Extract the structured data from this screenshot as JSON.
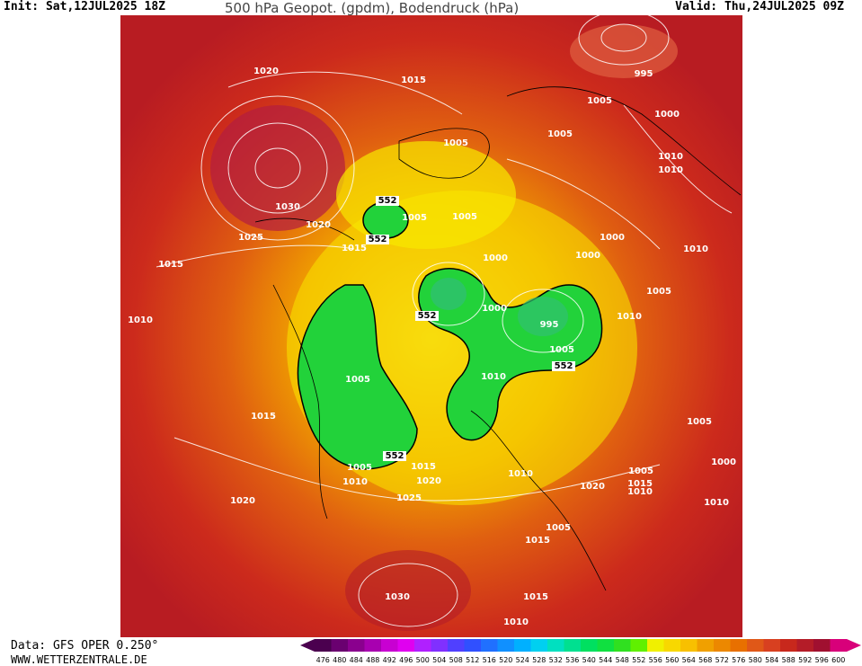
{
  "header": {
    "init": "Init: Sat,12JUL2025 18Z",
    "title": "500 hPa Geopot. (gpdm), Bodendruck (hPa)",
    "valid": "Valid: Thu,24JUL2025 09Z"
  },
  "footer": {
    "data_source": "Data: GFS OPER 0.250°",
    "website": "WWW.WETTERZENTRALE.DE"
  },
  "colors": {
    "background": "#cc2a1c",
    "low_green": "#22d23a",
    "contour": "#ffffff",
    "coast": "#000000"
  },
  "legend": {
    "values": [
      "476",
      "480",
      "484",
      "488",
      "492",
      "496",
      "500",
      "504",
      "508",
      "512",
      "516",
      "520",
      "524",
      "528",
      "532",
      "536",
      "540",
      "544",
      "548",
      "552",
      "556",
      "560",
      "564",
      "568",
      "572",
      "576",
      "580",
      "584",
      "588",
      "592",
      "596",
      "600"
    ],
    "colors": [
      "#4b004f",
      "#6a0070",
      "#8a008e",
      "#a800b0",
      "#c800d2",
      "#e000f0",
      "#b020ff",
      "#8030ff",
      "#5040ff",
      "#3050ff",
      "#2070ff",
      "#1090ff",
      "#00b0ff",
      "#00d0f0",
      "#00e0c0",
      "#00e090",
      "#00e060",
      "#10e040",
      "#30e020",
      "#60f000",
      "#f0f000",
      "#f8d800",
      "#f8c000",
      "#f0a000",
      "#ec8800",
      "#e87000",
      "#e05818",
      "#d84020",
      "#c8281c",
      "#b41c28",
      "#a01030",
      "#d8007a"
    ]
  },
  "map_labels": {
    "isobars": [
      "1020",
      "1015",
      "995",
      "1005",
      "1000",
      "1005",
      "1010",
      "1005",
      "1010",
      "1030",
      "1025",
      "1020",
      "1015",
      "552",
      "1005",
      "552",
      "1005",
      "1000",
      "1000",
      "1010",
      "1015",
      "552",
      "1000",
      "1005",
      "1010",
      "1010",
      "1000",
      "995",
      "1005",
      "552",
      "1005",
      "1010",
      "1005",
      "1005",
      "1015",
      "1010",
      "1005",
      "1015",
      "552",
      "1000",
      "1015",
      "1020",
      "1010",
      "1020",
      "1025",
      "1010",
      "1020",
      "1010",
      "1015",
      "1005",
      "1015",
      "1030",
      "1010"
    ]
  }
}
